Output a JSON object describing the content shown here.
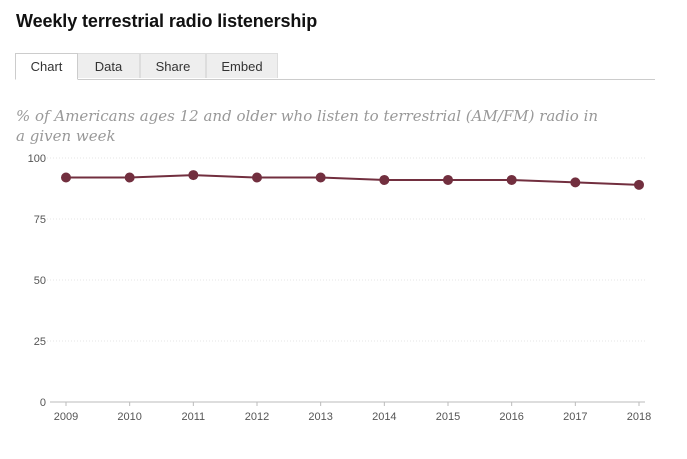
{
  "title": "Weekly terrestrial radio listenership",
  "tabs": [
    {
      "label": "Chart",
      "active": true
    },
    {
      "label": "Data",
      "active": false
    },
    {
      "label": "Share",
      "active": false
    },
    {
      "label": "Embed",
      "active": false
    }
  ],
  "colors": {
    "series": "#722f3f",
    "grid": "#e6e6e6",
    "axis": "#bbbbbb"
  },
  "chart_data": {
    "type": "line",
    "title": "Weekly terrestrial radio listenership",
    "subtitle": "% of Americans ages 12 and older who listen to terrestrial (AM/FM) radio in a given week",
    "x": [
      "2009",
      "2010",
      "2011",
      "2012",
      "2013",
      "2014",
      "2015",
      "2016",
      "2017",
      "2018"
    ],
    "series": [
      {
        "values": [
          92,
          92,
          93,
          92,
          92,
          91,
          91,
          91,
          90,
          89
        ]
      }
    ],
    "ylim": [
      0,
      100
    ],
    "yticks": [
      0,
      25,
      50,
      75,
      100
    ],
    "grid": true,
    "legend": "none",
    "markers": true
  }
}
